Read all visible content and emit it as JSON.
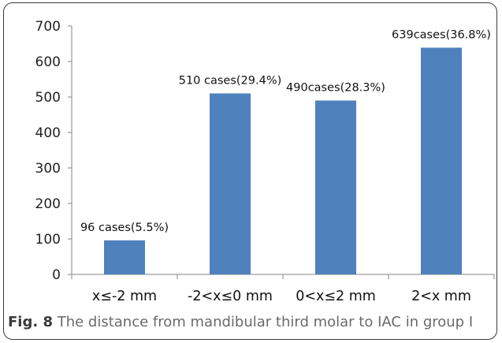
{
  "caption": {
    "label": "Fig. 8",
    "text": "The distance from mandibular third molar to IAC in group I"
  },
  "chart_data": {
    "type": "bar",
    "categories": [
      "x≤-2 mm",
      "-2<x≤0 mm",
      "0<x≤2 mm",
      "2<x mm"
    ],
    "values": [
      96,
      510,
      490,
      639
    ],
    "data_labels": [
      "96 cases(5.5%)",
      "510 cases(29.4%)",
      "490cases(28.3%)",
      "639cases(36.8%)"
    ],
    "ylim": [
      0,
      700
    ],
    "yticks": [
      0,
      100,
      200,
      300,
      400,
      500,
      600,
      700
    ],
    "grid": false,
    "legend": "none",
    "bar_color": "#4f81bd",
    "axis_color": "#868686"
  }
}
